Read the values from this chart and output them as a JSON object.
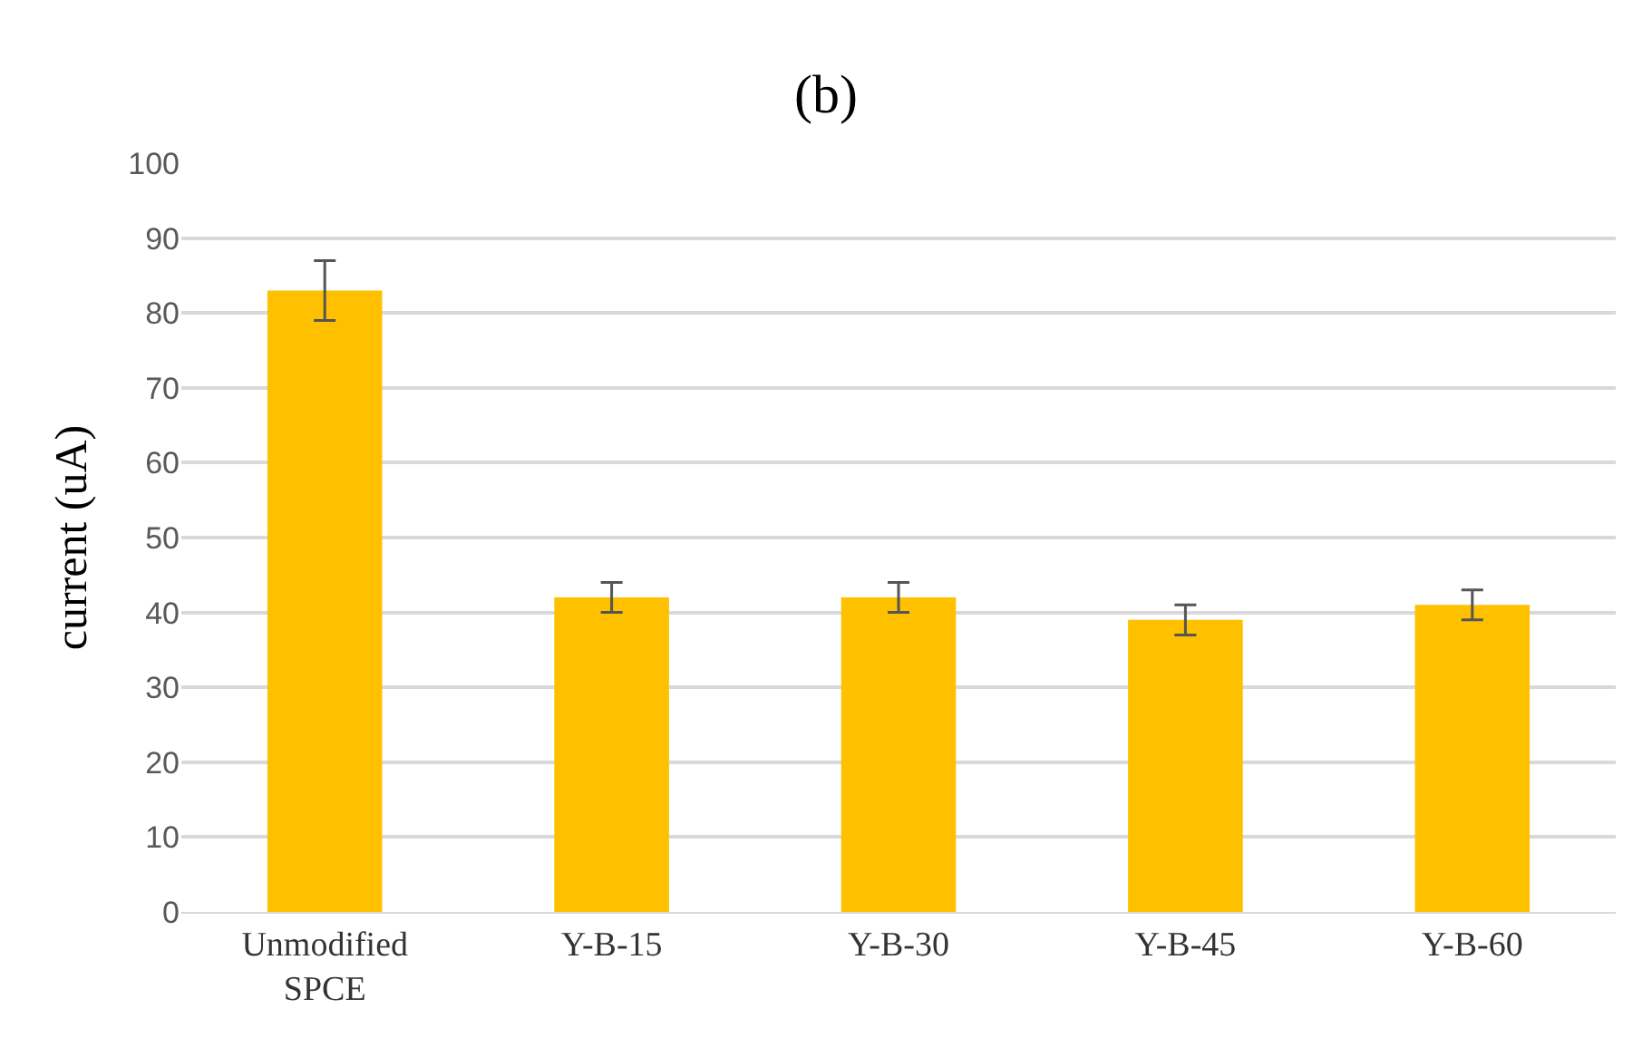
{
  "chart_data": {
    "type": "bar",
    "title": "(b)",
    "ylabel": "current (uA)",
    "categories": [
      "Unmodified SPCE",
      "Y-B-15",
      "Y-B-30",
      "Y-B-45",
      "Y-B-60"
    ],
    "values": [
      83,
      42,
      42,
      39,
      41
    ],
    "errors": [
      4,
      2,
      2,
      2,
      2
    ],
    "color": "#ffc000",
    "ylim": [
      0,
      100
    ],
    "yticks": [
      0,
      10,
      20,
      30,
      40,
      50,
      60,
      70,
      80,
      90,
      100
    ],
    "grid": "y",
    "legend": false
  }
}
